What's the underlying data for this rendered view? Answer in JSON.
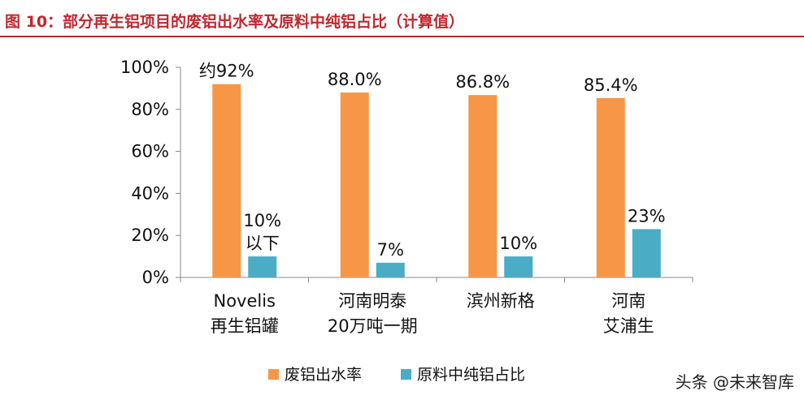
{
  "title": "图 10：部分再生铝项目的废铝出水率及原料中纯铝占比（计算值）",
  "watermark": "头条 @未来智库",
  "colors": {
    "title": "#c0272d",
    "series1": "#f79646",
    "series2": "#4bacc6",
    "axis": "#888888",
    "text": "#111111"
  },
  "chart_data": {
    "type": "bar",
    "title": "",
    "xlabel": "",
    "ylabel": "",
    "ylim": [
      0,
      100
    ],
    "y_ticks": [
      "0%",
      "20%",
      "40%",
      "60%",
      "80%",
      "100%"
    ],
    "y_tick_values": [
      0,
      20,
      40,
      60,
      80,
      100
    ],
    "grid": false,
    "legend_position": "bottom",
    "categories": [
      [
        "Novelis",
        "再生铝罐"
      ],
      [
        "河南明泰",
        "20万吨一期"
      ],
      [
        "滨州新格"
      ],
      [
        "河南",
        "艾浦生"
      ]
    ],
    "series": [
      {
        "name": "废铝出水率",
        "values": [
          92,
          88.0,
          86.8,
          85.4
        ],
        "labels": [
          [
            "约92%"
          ],
          [
            "88.0%"
          ],
          [
            "86.8%"
          ],
          [
            "85.4%"
          ]
        ]
      },
      {
        "name": "原料中纯铝占比",
        "values": [
          10,
          7,
          10,
          23
        ],
        "labels": [
          [
            "10%",
            "以下"
          ],
          [
            "7%"
          ],
          [
            "10%"
          ],
          [
            "23%"
          ]
        ]
      }
    ]
  }
}
